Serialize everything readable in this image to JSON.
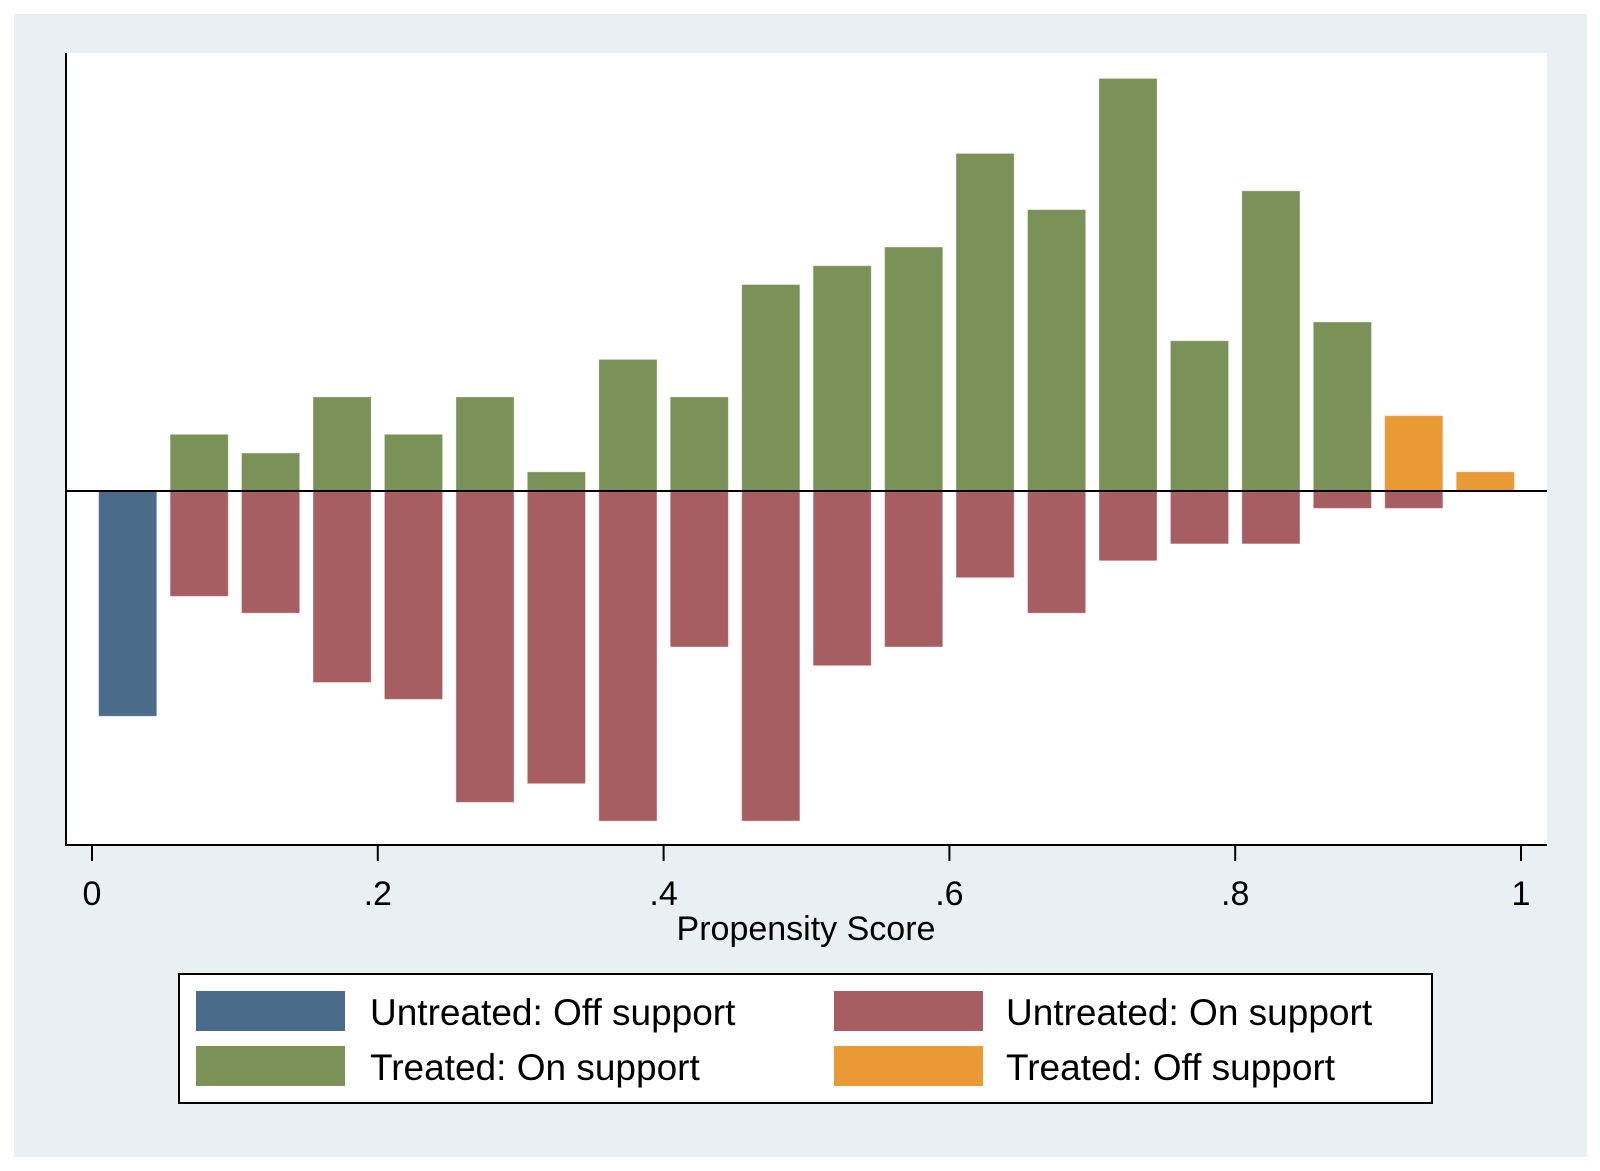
{
  "chart_data": {
    "type": "bar",
    "title": "",
    "xlabel": "Propensity Score",
    "ylabel": "",
    "xlim": [
      0,
      1
    ],
    "ylim": [
      -18.9,
      23.4
    ],
    "y_axis_labeled": false,
    "grid": false,
    "x_ticks": [
      0,
      0.2,
      0.4,
      0.6,
      0.8,
      1
    ],
    "x_tick_labels": [
      "0",
      ".2",
      ".4",
      ".6",
      ".8",
      "1"
    ],
    "bin_width": 0.05,
    "bin_centers": [
      0.025,
      0.075,
      0.125,
      0.175,
      0.225,
      0.275,
      0.325,
      0.375,
      0.425,
      0.475,
      0.525,
      0.575,
      0.625,
      0.675,
      0.725,
      0.775,
      0.825,
      0.875,
      0.925,
      0.975
    ],
    "note": "Treated plotted above zero, untreated plotted below zero (mirrored histogram); y-axis has no tick labels, values are estimated relative frequencies",
    "series": [
      {
        "name": "Untreated: Off support",
        "color": "#4a6b8a",
        "direction": "down",
        "values": [
          12.0,
          0,
          0,
          0,
          0,
          0,
          0,
          0,
          0,
          0,
          0,
          0,
          0,
          0,
          0,
          0,
          0,
          0,
          0,
          0
        ]
      },
      {
        "name": "Untreated: On support",
        "color": "#a65e62",
        "direction": "down",
        "values": [
          0,
          5.6,
          6.5,
          10.2,
          11.1,
          16.6,
          15.6,
          17.6,
          8.3,
          17.6,
          9.3,
          8.3,
          4.6,
          6.5,
          3.7,
          2.8,
          2.8,
          0.9,
          0.9,
          0
        ]
      },
      {
        "name": "Treated: On support",
        "color": "#7a9258",
        "direction": "up",
        "values": [
          0,
          3,
          2,
          5,
          3,
          5,
          1,
          7,
          5,
          11,
          12,
          13,
          18,
          15,
          22,
          8,
          16,
          9,
          0,
          0
        ]
      },
      {
        "name": "Treated: Off support",
        "color": "#ea9a35",
        "direction": "up",
        "values": [
          0,
          0,
          0,
          0,
          0,
          0,
          0,
          0,
          0,
          0,
          0,
          0,
          0,
          0,
          0,
          0,
          0,
          0,
          4,
          1
        ]
      }
    ],
    "legend": {
      "position": "bottom",
      "columns": 2,
      "entries": [
        {
          "label": "Untreated: Off support",
          "color": "#4a6b8a"
        },
        {
          "label": "Untreated: On support",
          "color": "#a65e62"
        },
        {
          "label": "Treated: On support",
          "color": "#7a9258"
        },
        {
          "label": "Treated: Off support",
          "color": "#ea9a35"
        }
      ]
    }
  }
}
